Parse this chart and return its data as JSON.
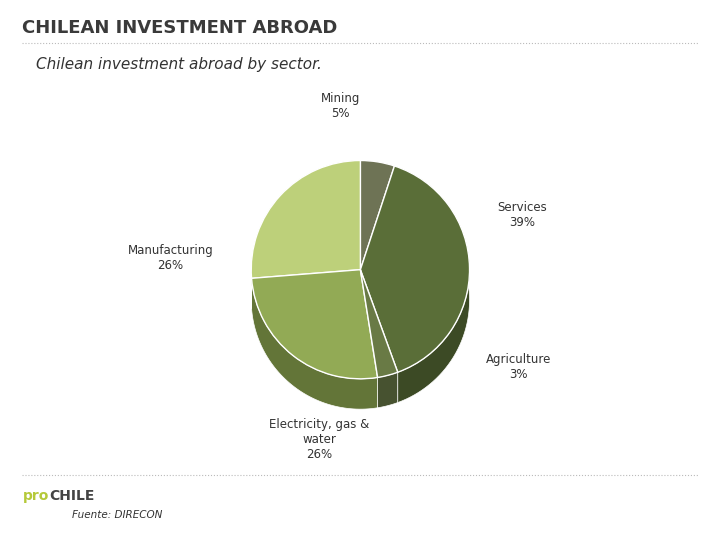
{
  "title": "CHILEAN INVESTMENT ABROAD",
  "subtitle": "Chilean investment abroad by sector.",
  "source": "Fuente: DIRECON",
  "labels": [
    "Mining",
    "Services",
    "Agriculture",
    "Electricity, gas &\nwater",
    "Manufacturing"
  ],
  "values": [
    5,
    39,
    3,
    26,
    26
  ],
  "pct_labels": [
    "5%",
    "39%",
    "3%",
    "26%",
    "26%"
  ],
  "colors_top": [
    "#8a9060",
    "#6b7c45",
    "#7a8c50",
    "#a0b865",
    "#c8d890"
  ],
  "colors_side": [
    "#5a6035",
    "#455230",
    "#505e35",
    "#708040",
    "#90a050"
  ],
  "startangle": 90,
  "background_color": "#ffffff",
  "title_fontsize": 13,
  "subtitle_fontsize": 11
}
